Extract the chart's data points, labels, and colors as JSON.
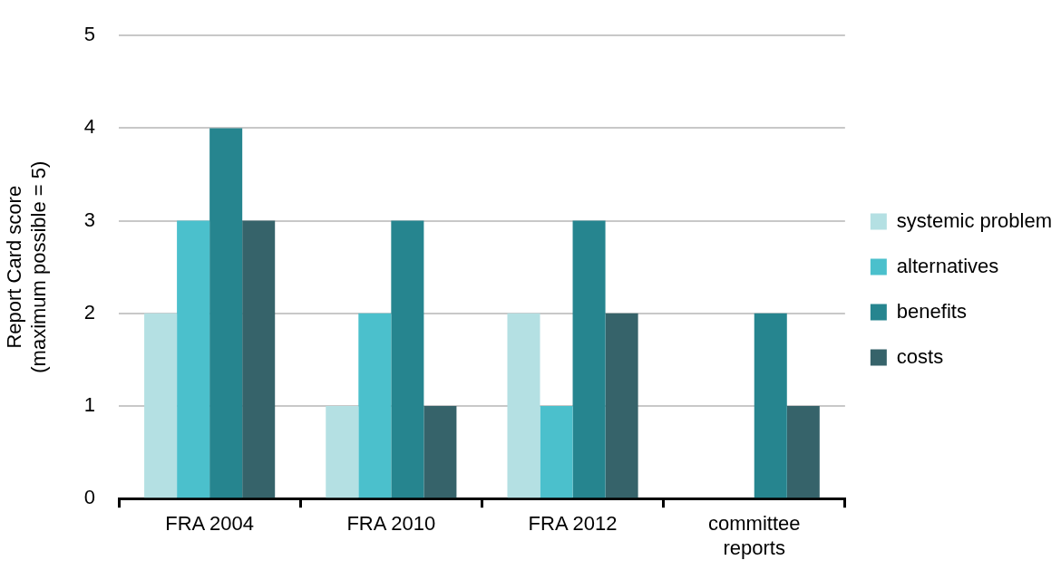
{
  "chart_data": {
    "type": "bar",
    "ylabel": "Report Card score\n(maximum possible = 5)",
    "categories": [
      "FRA 2004",
      "FRA 2010",
      "FRA 2012",
      "committee reports"
    ],
    "series": [
      {
        "name": "systemic problem",
        "color": "#b4e0e3",
        "values": [
          2,
          1,
          2,
          0
        ]
      },
      {
        "name": "alternatives",
        "color": "#4bc0cc",
        "values": [
          3,
          2,
          1,
          0
        ]
      },
      {
        "name": "benefits",
        "color": "#26858f",
        "values": [
          4,
          3,
          3,
          2
        ]
      },
      {
        "name": "costs",
        "color": "#36636a",
        "values": [
          3,
          1,
          2,
          1
        ]
      }
    ],
    "ylim": [
      0,
      5
    ],
    "yticks": [
      0,
      1,
      2,
      3,
      4,
      5
    ],
    "grid": "y",
    "legend": "right"
  }
}
